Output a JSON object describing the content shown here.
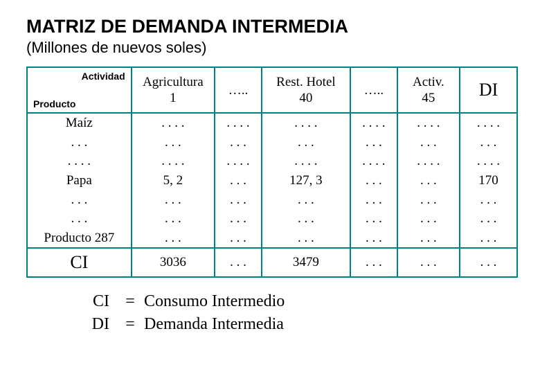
{
  "title": "MATRIZ DE DEMANDA INTERMEDIA",
  "subtitle": "(Millones de nuevos soles)",
  "table": {
    "header": {
      "corner_top": "Actividad",
      "corner_bottom": "Producto",
      "cols": [
        {
          "line1": "Agricultura",
          "line2": "1"
        },
        {
          "line1": "…..",
          "line2": ""
        },
        {
          "line1": "Rest. Hotel",
          "line2": "40"
        },
        {
          "line1": "…..",
          "line2": ""
        },
        {
          "line1": "Activ.",
          "line2": "45"
        },
        {
          "line1": "DI",
          "line2": ""
        }
      ]
    },
    "row_labels": [
      "Maíz",
      ". . .",
      ". . . .",
      "Papa",
      ". . .",
      ". . .",
      "Producto 287"
    ],
    "body": {
      "c0": [
        ". . . .",
        ". . .",
        ". . . .",
        "5, 2",
        ". . .",
        ". . .",
        ". . ."
      ],
      "c1": [
        ". . . .",
        ". . .",
        ". . . .",
        ". . .",
        ". . .",
        ". . .",
        ". . ."
      ],
      "c2": [
        ". . . .",
        ". . .",
        ". . . .",
        "127, 3",
        ". . .",
        ". . .",
        ". . ."
      ],
      "c3": [
        ". . . .",
        ". . .",
        ". . . .",
        ". . .",
        ". . .",
        ". . .",
        ". . ."
      ],
      "c4": [
        ". . . .",
        ". . .",
        ". . . .",
        ". . .",
        ". . .",
        ". . .",
        ". . ."
      ],
      "c5": [
        ". . . .",
        ". . .",
        ". . . .",
        "170",
        ". . .",
        ". . .",
        ". . ."
      ]
    },
    "footer": {
      "label": "CI",
      "cells": [
        "3036",
        ". . .",
        "3479",
        ". . .",
        ". . .",
        ". . ."
      ]
    }
  },
  "legend": {
    "rows": [
      {
        "k": "CI",
        "eq": "=",
        "v": "Consumo Intermedio"
      },
      {
        "k": "DI",
        "eq": "=",
        "v": "Demanda Intermedia"
      }
    ]
  },
  "colors": {
    "border": "#008080",
    "text": "#000000",
    "background": "#ffffff"
  }
}
